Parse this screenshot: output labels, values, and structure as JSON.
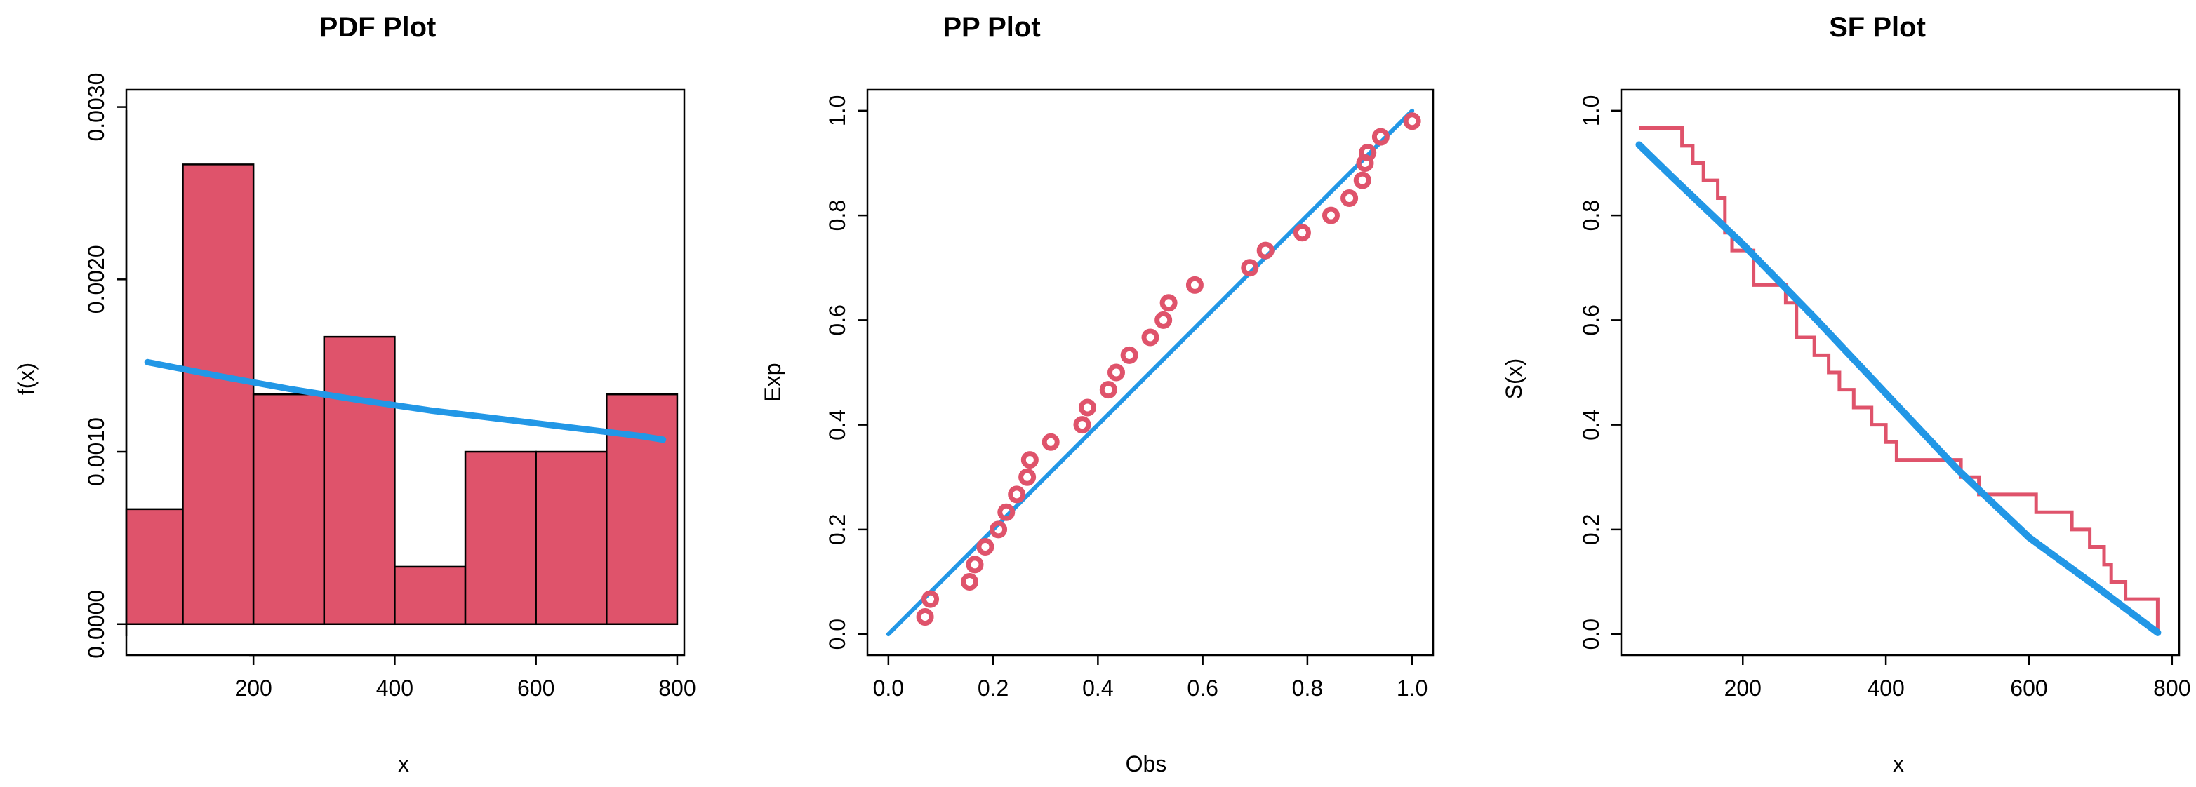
{
  "colors": {
    "bars": "#DF536B",
    "fit": "#2297E6",
    "points": "#DF536B",
    "step": "#DF536B",
    "axis": "#000000"
  },
  "chart_data": [
    {
      "type": "bar",
      "title": "PDF Plot",
      "xlabel": "x",
      "ylabel": "f(x)",
      "xlim": [
        20,
        810
      ],
      "ylim": [
        -0.00018,
        0.0031
      ],
      "xticks": [
        200,
        400,
        600,
        800
      ],
      "yticks": [
        0.0,
        0.001,
        0.002,
        0.003
      ],
      "ytick_labels": [
        "0.0000",
        "0.0010",
        "0.0020",
        "0.0030"
      ],
      "bins": [
        {
          "x0": 0,
          "x1": 100,
          "value": 0.000667
        },
        {
          "x0": 100,
          "x1": 200,
          "value": 0.002667
        },
        {
          "x0": 200,
          "x1": 300,
          "value": 0.001333
        },
        {
          "x0": 300,
          "x1": 400,
          "value": 0.001667
        },
        {
          "x0": 400,
          "x1": 500,
          "value": 0.000333
        },
        {
          "x0": 500,
          "x1": 600,
          "value": 0.001
        },
        {
          "x0": 600,
          "x1": 700,
          "value": 0.001
        },
        {
          "x0": 700,
          "x1": 800,
          "value": 0.001333
        }
      ],
      "fit_curve": {
        "x": [
          50,
          150,
          250,
          350,
          450,
          550,
          650,
          750,
          780
        ],
        "y": [
          0.00152,
          0.00144,
          0.001365,
          0.0013,
          0.00124,
          0.00119,
          0.00114,
          0.00109,
          0.00107
        ]
      }
    },
    {
      "type": "scatter",
      "title": "PP Plot",
      "xlabel": "Obs",
      "ylabel": "Exp",
      "xlim": [
        -0.04,
        1.04
      ],
      "ylim": [
        -0.04,
        1.04
      ],
      "xticks": [
        0.0,
        0.2,
        0.4,
        0.6,
        0.8,
        1.0
      ],
      "xtick_labels": [
        "0.0",
        "0.2",
        "0.4",
        "0.6",
        "0.8",
        "1.0"
      ],
      "yticks": [
        0.0,
        0.2,
        0.4,
        0.6,
        0.8,
        1.0
      ],
      "ytick_labels": [
        "0.0",
        "0.2",
        "0.4",
        "0.6",
        "0.8",
        "1.0"
      ],
      "points": {
        "x": [
          0.07,
          0.08,
          0.155,
          0.165,
          0.185,
          0.21,
          0.225,
          0.245,
          0.265,
          0.27,
          0.31,
          0.37,
          0.38,
          0.42,
          0.435,
          0.46,
          0.5,
          0.525,
          0.535,
          0.585,
          0.69,
          0.72,
          0.79,
          0.845,
          0.88,
          0.905,
          0.91,
          0.915,
          0.94,
          1.0
        ],
        "y": [
          0.033,
          0.067,
          0.1,
          0.133,
          0.167,
          0.2,
          0.233,
          0.267,
          0.3,
          0.333,
          0.367,
          0.4,
          0.433,
          0.467,
          0.5,
          0.533,
          0.567,
          0.6,
          0.633,
          0.667,
          0.7,
          0.733,
          0.767,
          0.8,
          0.833,
          0.867,
          0.9,
          0.92,
          0.95,
          0.98
        ]
      },
      "reference_line": {
        "x": [
          0,
          1
        ],
        "y": [
          0,
          1
        ]
      }
    },
    {
      "type": "line",
      "title": "SF Plot",
      "xlabel": "x",
      "ylabel": "S(x)",
      "xlim": [
        30,
        810
      ],
      "ylim": [
        -0.04,
        1.04
      ],
      "xticks": [
        200,
        400,
        600,
        800
      ],
      "yticks": [
        0.0,
        0.2,
        0.4,
        0.6,
        0.8,
        1.0
      ],
      "ytick_labels": [
        "0.0",
        "0.2",
        "0.4",
        "0.6",
        "0.8",
        "1.0"
      ],
      "empirical_sf": {
        "x": [
          55,
          115,
          130,
          145,
          165,
          175,
          185,
          215,
          260,
          275,
          300,
          320,
          335,
          355,
          380,
          400,
          415,
          505,
          530,
          610,
          660,
          685,
          705,
          715,
          735,
          780
        ],
        "y": [
          0.967,
          0.933,
          0.9,
          0.867,
          0.833,
          0.767,
          0.733,
          0.667,
          0.633,
          0.567,
          0.533,
          0.5,
          0.467,
          0.433,
          0.4,
          0.367,
          0.333,
          0.3,
          0.267,
          0.233,
          0.2,
          0.167,
          0.133,
          0.1,
          0.067,
          0.033
        ]
      },
      "fit_curve": {
        "x": [
          55,
          100,
          200,
          300,
          400,
          500,
          600,
          700,
          780
        ],
        "y": [
          0.935,
          0.875,
          0.745,
          0.605,
          0.46,
          0.315,
          0.185,
          0.085,
          0.003
        ]
      }
    }
  ]
}
